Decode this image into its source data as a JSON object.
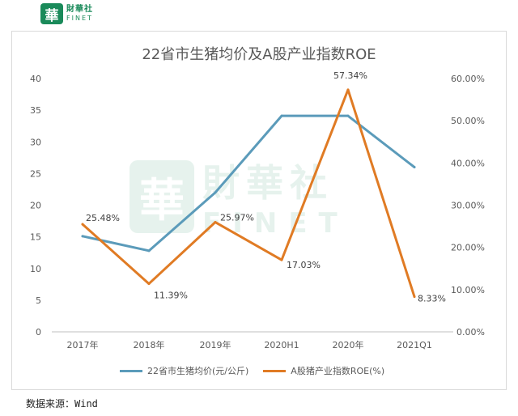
{
  "logo": {
    "mark": "華",
    "name_cn": "財華社",
    "name_en": "FINET"
  },
  "watermark": {
    "mark": "華",
    "name_cn": "財華社",
    "name_en": "FINET"
  },
  "chart_data": {
    "type": "line",
    "title": "22省市生猪均价及A股产业指数ROE",
    "categories": [
      "2017年",
      "2018年",
      "2019年",
      "2020H1",
      "2020年",
      "2021Q1"
    ],
    "left_axis": {
      "ylim": [
        0,
        40
      ],
      "ticks": [
        "0",
        "5",
        "10",
        "15",
        "20",
        "25",
        "30",
        "35",
        "40"
      ]
    },
    "right_axis": {
      "ylim": [
        0,
        0.6
      ],
      "ticks": [
        "0.00%",
        "10.00%",
        "20.00%",
        "30.00%",
        "40.00%",
        "50.00%",
        "60.00%"
      ]
    },
    "series": [
      {
        "name": "22省市生猪均价(元/公斤)",
        "axis": "left",
        "color": "#5b9bba",
        "values": [
          15.1,
          12.8,
          22.0,
          34.1,
          34.1,
          26.0
        ],
        "labels": [
          "",
          "",
          "",
          "",
          "",
          ""
        ]
      },
      {
        "name": "A股猪产业指数ROE(%)",
        "axis": "right",
        "color": "#e07b24",
        "values": [
          0.2548,
          0.1139,
          0.2597,
          0.1703,
          0.5734,
          0.0833
        ],
        "labels": [
          "25.48%",
          "11.39%",
          "25.97%",
          "17.03%",
          "57.34%",
          "8.33%"
        ]
      }
    ],
    "legend": "bottom",
    "grid": false
  },
  "source": "数据来源：Wind"
}
